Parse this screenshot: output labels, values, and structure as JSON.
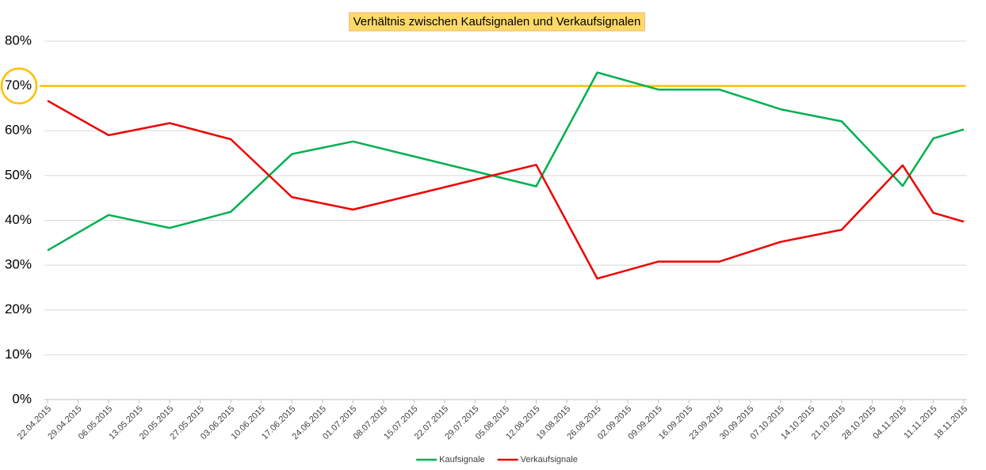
{
  "chart_data": {
    "type": "line",
    "title": "Verhältnis zwischen Kaufsignalen und Verkaufsignalen",
    "x": [
      "22.04.2015",
      "06.05.2015",
      "20.05.2015",
      "03.06.2015",
      "17.06.2015",
      "01.07.2015",
      "12.08.2015",
      "26.08.2015",
      "09.09.2015",
      "23.09.2015",
      "07.10.2015",
      "21.10.2015",
      "04.11.2015",
      "11.11.2015",
      "18.11.2015"
    ],
    "series": [
      {
        "name": "Kaufsignale",
        "color": "#00b050",
        "values": [
          33.3,
          41.2,
          38.3,
          41.9,
          54.8,
          57.6,
          47.6,
          73.0,
          69.2,
          69.2,
          64.8,
          62.1,
          47.7,
          58.3,
          60.3
        ]
      },
      {
        "name": "Verkaufsignale",
        "color": "#ee0000",
        "values": [
          66.7,
          59.0,
          61.7,
          58.1,
          45.2,
          42.4,
          52.4,
          27.0,
          30.8,
          30.8,
          35.2,
          37.9,
          52.3,
          41.7,
          39.7
        ]
      }
    ],
    "xlim": [
      "22.04.2015",
      "18.11.2015"
    ],
    "xticks": [
      "22.04.2015",
      "29.04.2015",
      "06.05.2015",
      "13.05.2015",
      "20.05.2015",
      "27.05.2015",
      "03.06.2015",
      "10.06.2015",
      "17.06.2015",
      "24.06.2015",
      "01.07.2015",
      "08.07.2015",
      "15.07.2015",
      "22.07.2015",
      "29.07.2015",
      "05.08.2015",
      "12.08.2015",
      "19.08.2015",
      "26.08.2015",
      "02.09.2015",
      "09.09.2015",
      "16.09.2015",
      "23.09.2015",
      "30.09.2015",
      "07.10.2015",
      "14.10.2015",
      "21.10.2015",
      "28.10.2015",
      "04.11.2015",
      "11.11.2015",
      "18.11.2015"
    ],
    "ylim": [
      0,
      80
    ],
    "yticks": [
      {
        "value": 0,
        "label": "0%"
      },
      {
        "value": 10,
        "label": "10%"
      },
      {
        "value": 20,
        "label": "20%"
      },
      {
        "value": 30,
        "label": "30%"
      },
      {
        "value": 40,
        "label": "40%"
      },
      {
        "value": 50,
        "label": "50%"
      },
      {
        "value": 60,
        "label": "60%"
      },
      {
        "value": 70,
        "label": "70%"
      },
      {
        "value": 80,
        "label": "80%"
      }
    ],
    "threshold": {
      "value": 70,
      "color": "#ffc000"
    },
    "grid": true,
    "legend": "bottom"
  }
}
